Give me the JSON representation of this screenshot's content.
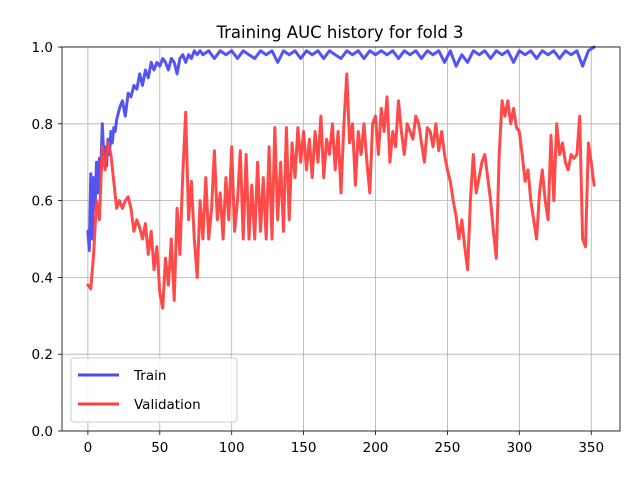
{
  "chart_data": {
    "type": "line",
    "title": "Training AUC history for fold 3",
    "xlabel": "",
    "ylabel": "",
    "xlim": [
      -18,
      370
    ],
    "ylim": [
      0,
      1.0
    ],
    "xticks": [
      0,
      50,
      100,
      150,
      200,
      250,
      300,
      350
    ],
    "yticks": [
      0.0,
      0.2,
      0.4,
      0.6,
      0.8,
      1.0
    ],
    "xtick_labels": [
      "0",
      "50",
      "100",
      "150",
      "200",
      "250",
      "300",
      "350"
    ],
    "ytick_labels": [
      "0.0",
      "0.2",
      "0.4",
      "0.6",
      "0.8",
      "1.0"
    ],
    "grid": true,
    "legend_position": "lower-left",
    "series": [
      {
        "name": "Train",
        "color": "#4b4bf0",
        "points": [
          [
            0,
            0.52
          ],
          [
            1,
            0.47
          ],
          [
            2,
            0.67
          ],
          [
            3,
            0.5
          ],
          [
            4,
            0.66
          ],
          [
            5,
            0.58
          ],
          [
            6,
            0.7
          ],
          [
            7,
            0.62
          ],
          [
            8,
            0.71
          ],
          [
            9,
            0.68
          ],
          [
            10,
            0.8
          ],
          [
            11,
            0.72
          ],
          [
            12,
            0.74
          ],
          [
            13,
            0.69
          ],
          [
            14,
            0.76
          ],
          [
            15,
            0.72
          ],
          [
            16,
            0.78
          ],
          [
            17,
            0.75
          ],
          [
            18,
            0.79
          ],
          [
            19,
            0.78
          ],
          [
            20,
            0.81
          ],
          [
            22,
            0.84
          ],
          [
            24,
            0.86
          ],
          [
            26,
            0.82
          ],
          [
            28,
            0.88
          ],
          [
            30,
            0.87
          ],
          [
            32,
            0.9
          ],
          [
            34,
            0.89
          ],
          [
            36,
            0.93
          ],
          [
            38,
            0.9
          ],
          [
            40,
            0.94
          ],
          [
            42,
            0.92
          ],
          [
            44,
            0.96
          ],
          [
            46,
            0.94
          ],
          [
            48,
            0.96
          ],
          [
            50,
            0.95
          ],
          [
            52,
            0.97
          ],
          [
            54,
            0.96
          ],
          [
            56,
            0.94
          ],
          [
            58,
            0.97
          ],
          [
            60,
            0.96
          ],
          [
            62,
            0.93
          ],
          [
            64,
            0.97
          ],
          [
            66,
            0.98
          ],
          [
            68,
            0.96
          ],
          [
            70,
            0.98
          ],
          [
            72,
            0.97
          ],
          [
            74,
            0.99
          ],
          [
            76,
            0.98
          ],
          [
            78,
            0.99
          ],
          [
            80,
            0.98
          ],
          [
            84,
            0.99
          ],
          [
            88,
            0.97
          ],
          [
            92,
            0.99
          ],
          [
            96,
            0.98
          ],
          [
            100,
            0.99
          ],
          [
            104,
            0.97
          ],
          [
            108,
            0.99
          ],
          [
            112,
            0.98
          ],
          [
            116,
            0.97
          ],
          [
            120,
            0.99
          ],
          [
            124,
            0.98
          ],
          [
            128,
            0.99
          ],
          [
            132,
            0.96
          ],
          [
            136,
            0.99
          ],
          [
            140,
            0.98
          ],
          [
            144,
            0.99
          ],
          [
            148,
            0.97
          ],
          [
            152,
            0.99
          ],
          [
            156,
            0.98
          ],
          [
            160,
            0.99
          ],
          [
            164,
            0.97
          ],
          [
            168,
            0.99
          ],
          [
            172,
            0.98
          ],
          [
            176,
            0.97
          ],
          [
            180,
            0.99
          ],
          [
            184,
            0.98
          ],
          [
            188,
            0.99
          ],
          [
            192,
            0.97
          ],
          [
            196,
            0.99
          ],
          [
            200,
            0.98
          ],
          [
            204,
            0.99
          ],
          [
            208,
            0.98
          ],
          [
            212,
            0.99
          ],
          [
            216,
            0.97
          ],
          [
            220,
            0.99
          ],
          [
            224,
            0.98
          ],
          [
            228,
            0.99
          ],
          [
            232,
            0.97
          ],
          [
            236,
            0.99
          ],
          [
            240,
            0.98
          ],
          [
            244,
            0.99
          ],
          [
            248,
            0.96
          ],
          [
            252,
            0.99
          ],
          [
            256,
            0.95
          ],
          [
            260,
            0.98
          ],
          [
            264,
            0.96
          ],
          [
            268,
            0.99
          ],
          [
            272,
            0.98
          ],
          [
            276,
            0.99
          ],
          [
            280,
            0.97
          ],
          [
            284,
            0.99
          ],
          [
            288,
            0.98
          ],
          [
            292,
            0.99
          ],
          [
            296,
            0.96
          ],
          [
            300,
            0.99
          ],
          [
            304,
            0.98
          ],
          [
            308,
            0.99
          ],
          [
            312,
            0.97
          ],
          [
            316,
            0.99
          ],
          [
            320,
            0.98
          ],
          [
            324,
            0.99
          ],
          [
            328,
            0.97
          ],
          [
            332,
            0.99
          ],
          [
            336,
            0.98
          ],
          [
            340,
            0.99
          ],
          [
            344,
            0.95
          ],
          [
            348,
            0.99
          ],
          [
            352,
            1.0
          ]
        ]
      },
      {
        "name": "Validation",
        "color": "#ff4040",
        "points": [
          [
            0,
            0.38
          ],
          [
            2,
            0.37
          ],
          [
            4,
            0.46
          ],
          [
            6,
            0.6
          ],
          [
            8,
            0.55
          ],
          [
            10,
            0.74
          ],
          [
            12,
            0.68
          ],
          [
            14,
            0.75
          ],
          [
            16,
            0.72
          ],
          [
            18,
            0.65
          ],
          [
            20,
            0.58
          ],
          [
            22,
            0.6
          ],
          [
            24,
            0.58
          ],
          [
            26,
            0.6
          ],
          [
            28,
            0.61
          ],
          [
            30,
            0.58
          ],
          [
            32,
            0.52
          ],
          [
            34,
            0.55
          ],
          [
            36,
            0.53
          ],
          [
            38,
            0.5
          ],
          [
            40,
            0.54
          ],
          [
            42,
            0.46
          ],
          [
            44,
            0.52
          ],
          [
            46,
            0.42
          ],
          [
            48,
            0.48
          ],
          [
            50,
            0.36
          ],
          [
            52,
            0.32
          ],
          [
            54,
            0.45
          ],
          [
            56,
            0.38
          ],
          [
            58,
            0.5
          ],
          [
            60,
            0.34
          ],
          [
            62,
            0.58
          ],
          [
            64,
            0.46
          ],
          [
            66,
            0.67
          ],
          [
            68,
            0.83
          ],
          [
            70,
            0.55
          ],
          [
            72,
            0.65
          ],
          [
            74,
            0.5
          ],
          [
            76,
            0.4
          ],
          [
            78,
            0.6
          ],
          [
            80,
            0.5
          ],
          [
            82,
            0.66
          ],
          [
            84,
            0.5
          ],
          [
            86,
            0.58
          ],
          [
            88,
            0.73
          ],
          [
            90,
            0.55
          ],
          [
            92,
            0.62
          ],
          [
            94,
            0.5
          ],
          [
            96,
            0.66
          ],
          [
            98,
            0.55
          ],
          [
            100,
            0.74
          ],
          [
            102,
            0.52
          ],
          [
            104,
            0.6
          ],
          [
            106,
            0.73
          ],
          [
            108,
            0.5
          ],
          [
            110,
            0.72
          ],
          [
            112,
            0.5
          ],
          [
            114,
            0.64
          ],
          [
            116,
            0.5
          ],
          [
            118,
            0.7
          ],
          [
            120,
            0.52
          ],
          [
            122,
            0.66
          ],
          [
            124,
            0.5
          ],
          [
            126,
            0.74
          ],
          [
            128,
            0.5
          ],
          [
            130,
            0.79
          ],
          [
            132,
            0.55
          ],
          [
            134,
            0.7
          ],
          [
            136,
            0.52
          ],
          [
            138,
            0.79
          ],
          [
            140,
            0.55
          ],
          [
            142,
            0.75
          ],
          [
            144,
            0.66
          ],
          [
            146,
            0.79
          ],
          [
            148,
            0.7
          ],
          [
            150,
            0.78
          ],
          [
            152,
            0.68
          ],
          [
            154,
            0.76
          ],
          [
            156,
            0.66
          ],
          [
            158,
            0.78
          ],
          [
            160,
            0.7
          ],
          [
            162,
            0.82
          ],
          [
            164,
            0.66
          ],
          [
            166,
            0.76
          ],
          [
            168,
            0.72
          ],
          [
            170,
            0.8
          ],
          [
            172,
            0.68
          ],
          [
            174,
            0.78
          ],
          [
            176,
            0.62
          ],
          [
            178,
            0.8
          ],
          [
            180,
            0.93
          ],
          [
            182,
            0.75
          ],
          [
            184,
            0.8
          ],
          [
            186,
            0.64
          ],
          [
            188,
            0.78
          ],
          [
            190,
            0.72
          ],
          [
            192,
            0.8
          ],
          [
            194,
            0.7
          ],
          [
            196,
            0.62
          ],
          [
            198,
            0.8
          ],
          [
            200,
            0.82
          ],
          [
            202,
            0.72
          ],
          [
            204,
            0.84
          ],
          [
            206,
            0.78
          ],
          [
            208,
            0.87
          ],
          [
            210,
            0.7
          ],
          [
            212,
            0.78
          ],
          [
            214,
            0.74
          ],
          [
            216,
            0.86
          ],
          [
            218,
            0.78
          ],
          [
            220,
            0.72
          ],
          [
            222,
            0.8
          ],
          [
            224,
            0.78
          ],
          [
            226,
            0.76
          ],
          [
            228,
            0.82
          ],
          [
            230,
            0.8
          ],
          [
            232,
            0.75
          ],
          [
            234,
            0.7
          ],
          [
            236,
            0.79
          ],
          [
            238,
            0.78
          ],
          [
            240,
            0.74
          ],
          [
            242,
            0.8
          ],
          [
            244,
            0.73
          ],
          [
            246,
            0.78
          ],
          [
            248,
            0.72
          ],
          [
            250,
            0.68
          ],
          [
            252,
            0.65
          ],
          [
            254,
            0.6
          ],
          [
            256,
            0.56
          ],
          [
            258,
            0.5
          ],
          [
            260,
            0.55
          ],
          [
            262,
            0.48
          ],
          [
            264,
            0.42
          ],
          [
            266,
            0.6
          ],
          [
            268,
            0.72
          ],
          [
            270,
            0.62
          ],
          [
            272,
            0.66
          ],
          [
            274,
            0.7
          ],
          [
            276,
            0.72
          ],
          [
            278,
            0.66
          ],
          [
            280,
            0.6
          ],
          [
            282,
            0.52
          ],
          [
            284,
            0.45
          ],
          [
            286,
            0.72
          ],
          [
            288,
            0.86
          ],
          [
            290,
            0.82
          ],
          [
            292,
            0.86
          ],
          [
            294,
            0.8
          ],
          [
            296,
            0.84
          ],
          [
            298,
            0.79
          ],
          [
            300,
            0.78
          ],
          [
            302,
            0.72
          ],
          [
            304,
            0.65
          ],
          [
            306,
            0.68
          ],
          [
            308,
            0.6
          ],
          [
            310,
            0.55
          ],
          [
            312,
            0.5
          ],
          [
            314,
            0.62
          ],
          [
            316,
            0.68
          ],
          [
            318,
            0.6
          ],
          [
            320,
            0.55
          ],
          [
            322,
            0.77
          ],
          [
            324,
            0.6
          ],
          [
            326,
            0.8
          ],
          [
            328,
            0.72
          ],
          [
            330,
            0.75
          ],
          [
            332,
            0.7
          ],
          [
            334,
            0.68
          ],
          [
            336,
            0.72
          ],
          [
            338,
            0.71
          ],
          [
            340,
            0.72
          ],
          [
            342,
            0.82
          ],
          [
            344,
            0.5
          ],
          [
            346,
            0.48
          ],
          [
            348,
            0.75
          ],
          [
            350,
            0.7
          ],
          [
            352,
            0.64
          ]
        ]
      }
    ]
  }
}
